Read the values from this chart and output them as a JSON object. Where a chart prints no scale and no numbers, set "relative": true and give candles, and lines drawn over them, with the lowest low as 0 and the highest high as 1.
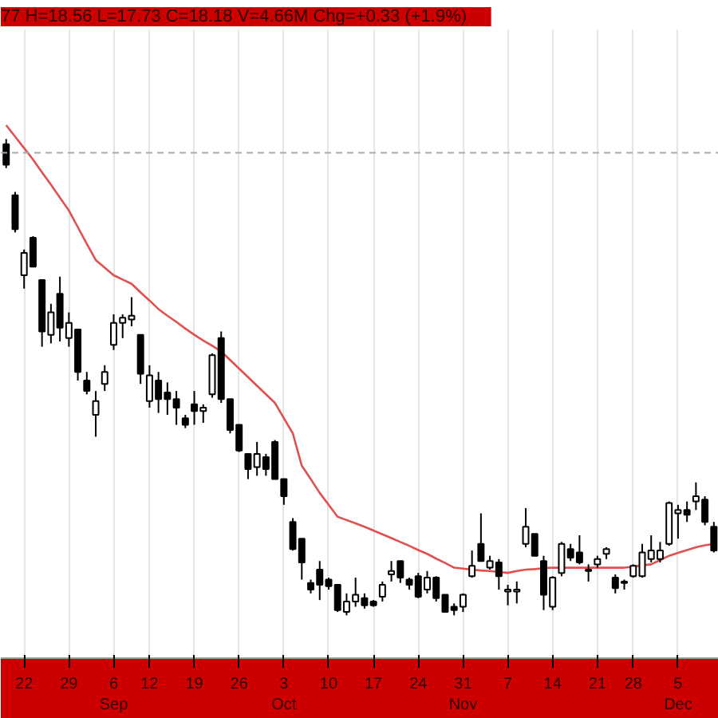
{
  "chart_data": {
    "type": "candlestick",
    "relative": true,
    "annotations": [
      "77  H=18.56  L=17.73  C=18.18  V=4.66M  Chg=+0.33 (+1.9%)"
    ],
    "categories": [
      null,
      null,
      "22",
      null,
      null,
      null,
      null,
      "29",
      null,
      null,
      null,
      null,
      "6 Sep",
      null,
      null,
      null,
      "12",
      null,
      null,
      null,
      null,
      "19",
      null,
      null,
      null,
      null,
      "26",
      null,
      null,
      null,
      null,
      "3 Oct",
      null,
      null,
      null,
      null,
      "10",
      null,
      null,
      null,
      null,
      "17",
      null,
      null,
      null,
      null,
      "24",
      null,
      null,
      null,
      null,
      "31 Nov",
      null,
      null,
      null,
      null,
      "7",
      null,
      null,
      null,
      null,
      "14",
      null,
      null,
      null,
      null,
      "21",
      null,
      null,
      null,
      "28",
      null,
      null,
      null,
      null,
      "5 Dec",
      null,
      null,
      null,
      null
    ],
    "ohlc": [
      [
        0.989,
        1.0,
        0.939,
        0.946
      ],
      [
        0.882,
        0.889,
        0.804,
        0.811
      ],
      [
        0.714,
        0.768,
        0.686,
        0.761
      ],
      [
        0.793,
        0.796,
        0.732,
        0.732
      ],
      [
        0.704,
        0.704,
        0.564,
        0.596
      ],
      [
        0.589,
        0.654,
        0.571,
        0.636
      ],
      [
        0.675,
        0.711,
        0.575,
        0.604
      ],
      [
        0.582,
        0.636,
        0.564,
        0.614
      ],
      [
        0.6,
        0.6,
        0.493,
        0.511
      ],
      [
        0.493,
        0.511,
        0.464,
        0.471
      ],
      [
        0.421,
        0.471,
        0.375,
        0.45
      ],
      [
        0.486,
        0.525,
        0.471,
        0.511
      ],
      [
        0.568,
        0.632,
        0.557,
        0.614
      ],
      [
        0.614,
        0.632,
        0.582,
        0.625
      ],
      [
        0.621,
        0.668,
        0.607,
        0.629
      ],
      [
        0.589,
        0.589,
        0.486,
        0.507
      ],
      [
        0.45,
        0.525,
        0.436,
        0.504
      ],
      [
        0.493,
        0.511,
        0.425,
        0.454
      ],
      [
        0.468,
        0.489,
        0.421,
        0.454
      ],
      [
        0.454,
        0.471,
        0.4,
        0.436
      ],
      [
        0.414,
        0.421,
        0.393,
        0.4
      ],
      [
        0.443,
        0.471,
        0.4,
        0.429
      ],
      [
        0.429,
        0.443,
        0.404,
        0.436
      ],
      [
        0.464,
        0.55,
        0.457,
        0.546
      ],
      [
        0.582,
        0.596,
        0.446,
        0.454
      ],
      [
        0.454,
        0.454,
        0.382,
        0.389
      ],
      [
        0.4,
        0.4,
        0.343,
        0.346
      ],
      [
        0.339,
        0.339,
        0.286,
        0.307
      ],
      [
        0.311,
        0.364,
        0.293,
        0.339
      ],
      [
        0.332,
        0.339,
        0.293,
        0.307
      ],
      [
        0.364,
        0.368,
        0.286,
        0.286
      ],
      [
        0.286,
        0.286,
        0.232,
        0.25
      ],
      [
        0.196,
        0.204,
        0.136,
        0.139
      ],
      [
        0.161,
        0.161,
        0.075,
        0.111
      ],
      [
        0.068,
        0.075,
        0.046,
        0.054
      ],
      [
        0.096,
        0.114,
        0.032,
        0.064
      ],
      [
        0.075,
        0.079,
        0.054,
        0.061
      ],
      [
        0.064,
        0.064,
        0.007,
        0.011
      ],
      [
        0.007,
        0.046,
        0.0,
        0.029
      ],
      [
        0.029,
        0.079,
        0.018,
        0.043
      ],
      [
        0.036,
        0.046,
        0.014,
        0.021
      ],
      [
        0.029,
        0.032,
        0.018,
        0.021
      ],
      [
        0.039,
        0.071,
        0.029,
        0.064
      ],
      [
        0.086,
        0.114,
        0.071,
        0.093
      ],
      [
        0.114,
        0.114,
        0.068,
        0.079
      ],
      [
        0.075,
        0.079,
        0.054,
        0.064
      ],
      [
        0.082,
        0.089,
        0.036,
        0.039
      ],
      [
        0.054,
        0.093,
        0.046,
        0.079
      ],
      [
        0.079,
        0.082,
        0.029,
        0.036
      ],
      [
        0.043,
        0.043,
        0.007,
        0.007
      ],
      [
        0.018,
        0.025,
        0.0,
        0.011
      ],
      [
        0.018,
        0.046,
        0.007,
        0.043
      ],
      [
        0.082,
        0.136,
        0.079,
        0.104
      ],
      [
        0.15,
        0.214,
        0.114,
        0.114
      ],
      [
        0.1,
        0.125,
        0.096,
        0.114
      ],
      [
        0.111,
        0.118,
        0.054,
        0.082
      ],
      [
        0.05,
        0.064,
        0.021,
        0.054
      ],
      [
        0.05,
        0.071,
        0.025,
        0.054
      ],
      [
        0.15,
        0.225,
        0.143,
        0.186
      ],
      [
        0.171,
        0.171,
        0.125,
        0.125
      ],
      [
        0.114,
        0.125,
        0.011,
        0.043
      ],
      [
        0.018,
        0.082,
        0.011,
        0.079
      ],
      [
        0.089,
        0.154,
        0.082,
        0.15
      ],
      [
        0.139,
        0.15,
        0.114,
        0.121
      ],
      [
        0.132,
        0.168,
        0.107,
        0.111
      ],
      [
        0.093,
        0.107,
        0.071,
        0.096
      ],
      [
        0.107,
        0.125,
        0.1,
        0.118
      ],
      [
        0.129,
        0.143,
        0.118,
        0.139
      ],
      [
        0.079,
        0.086,
        0.046,
        0.057
      ],
      [
        0.068,
        0.075,
        0.054,
        0.071
      ],
      [
        0.082,
        0.107,
        0.079,
        0.104
      ],
      [
        0.082,
        0.15,
        0.079,
        0.132
      ],
      [
        0.118,
        0.168,
        0.111,
        0.136
      ],
      [
        0.118,
        0.154,
        0.111,
        0.136
      ],
      [
        0.15,
        0.239,
        0.146,
        0.236
      ],
      [
        0.214,
        0.232,
        0.161,
        0.221
      ],
      [
        0.221,
        0.239,
        0.196,
        0.211
      ],
      [
        0.239,
        0.279,
        0.221,
        0.25
      ],
      [
        0.243,
        0.25,
        0.189,
        0.196
      ],
      [
        0.186,
        0.196,
        0.132,
        0.136
      ]
    ],
    "series": [
      {
        "type": "line",
        "color": "#e05050",
        "values": [
          1.029,
          1.005,
          0.981,
          0.957,
          0.93,
          0.904,
          0.877,
          0.85,
          0.815,
          0.78,
          0.746,
          0.73,
          0.714,
          0.705,
          0.696,
          0.678,
          0.661,
          0.643,
          0.629,
          0.616,
          0.602,
          0.589,
          0.577,
          0.566,
          0.554,
          0.536,
          0.518,
          0.5,
          0.482,
          0.464,
          0.446,
          0.414,
          0.382,
          0.314,
          0.286,
          0.257,
          0.232,
          0.207,
          0.2,
          0.193,
          0.186,
          0.178,
          0.17,
          0.162,
          0.154,
          0.146,
          0.137,
          0.129,
          0.119,
          0.11,
          0.1,
          0.098,
          0.096,
          0.094,
          0.093,
          0.091,
          0.089,
          0.093,
          0.096,
          0.097,
          0.099,
          0.1,
          0.1,
          0.1,
          0.1,
          0.1,
          0.1,
          0.1,
          0.1,
          0.1,
          0.102,
          0.105,
          0.107,
          0.116,
          0.125,
          0.131,
          0.137,
          0.143,
          0.147,
          0.15
        ]
      }
    ],
    "ref_lines": [
      {
        "axis": "y",
        "value": 0.971,
        "color": "#aaaaaa",
        "line_style": "dashed"
      }
    ],
    "grid": "x"
  }
}
